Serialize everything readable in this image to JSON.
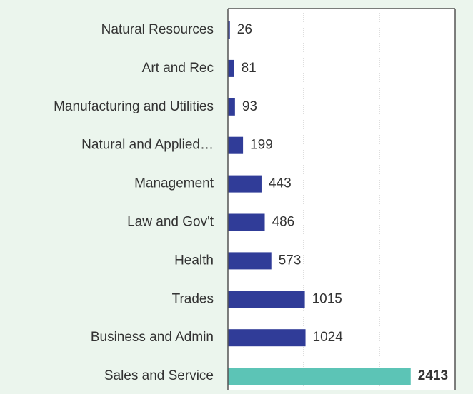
{
  "chart_data": {
    "type": "bar",
    "orientation": "horizontal",
    "categories": [
      "Natural Resources",
      "Art and Rec",
      "Manufacturing and Utilities",
      "Natural and Applied…",
      "Management",
      "Law and Gov't",
      "Health",
      "Trades",
      "Business and Admin",
      "Sales and Service"
    ],
    "values": [
      26,
      81,
      93,
      199,
      443,
      486,
      573,
      1015,
      1024,
      2413
    ],
    "colors": [
      "#303c98",
      "#303c98",
      "#303c98",
      "#303c98",
      "#303c98",
      "#303c98",
      "#303c98",
      "#303c98",
      "#303c98",
      "#5cc4b6"
    ],
    "xlim": [
      0,
      3000
    ],
    "xticks": [
      1000,
      2000
    ],
    "grid": true
  }
}
